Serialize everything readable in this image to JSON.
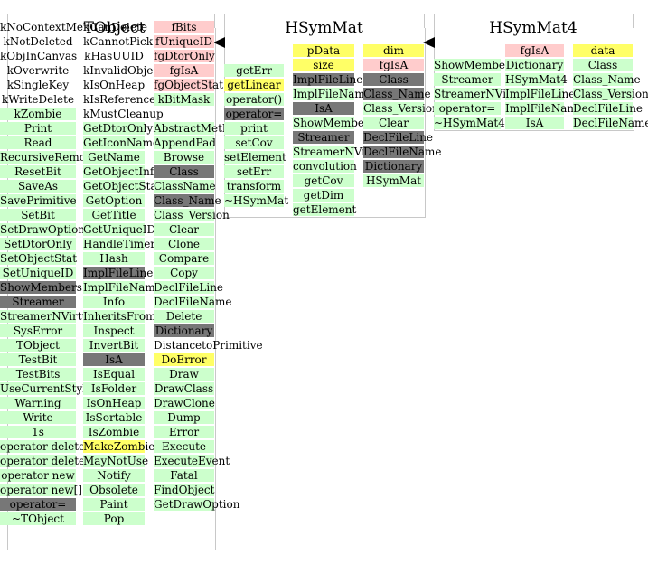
{
  "colors": {
    "method": "#ccffcc",
    "datamember": "#ffcccc",
    "highlight": "#ffff66",
    "inherited": "#777777",
    "frame": "#c8c8c8"
  },
  "panels": [
    {
      "title": "TObject",
      "columns": [
        {
          "x": 0,
          "w": 84,
          "start": 23,
          "cells": [
            {
              "text": "kNoContextMenu",
              "type": "plain"
            },
            {
              "text": "kNotDeleted",
              "type": "plain"
            },
            {
              "text": "kObjInCanvas",
              "type": "plain"
            },
            {
              "text": "kOverwrite",
              "type": "plain"
            },
            {
              "text": "kSingleKey",
              "type": "plain"
            },
            {
              "text": "kWriteDelete",
              "type": "plain"
            },
            {
              "text": "kZombie",
              "type": "method"
            },
            {
              "text": "Print",
              "type": "method"
            },
            {
              "text": "Read",
              "type": "method"
            },
            {
              "text": "RecursiveRemove",
              "type": "method"
            },
            {
              "text": "ResetBit",
              "type": "method"
            },
            {
              "text": "SaveAs",
              "type": "method"
            },
            {
              "text": "SavePrimitive",
              "type": "method"
            },
            {
              "text": "SetBit",
              "type": "method"
            },
            {
              "text": "SetDrawOption",
              "type": "method"
            },
            {
              "text": "SetDtorOnly",
              "type": "method"
            },
            {
              "text": "SetObjectStat",
              "type": "method"
            },
            {
              "text": "SetUniqueID",
              "type": "method"
            },
            {
              "text": "ShowMembers",
              "type": "inherited"
            },
            {
              "text": "Streamer",
              "type": "inherited"
            },
            {
              "text": "StreamerNVirtual",
              "type": "method"
            },
            {
              "text": "SysError",
              "type": "method"
            },
            {
              "text": "TObject",
              "type": "method"
            },
            {
              "text": "TestBit",
              "type": "method"
            },
            {
              "text": "TestBits",
              "type": "method"
            },
            {
              "text": "UseCurrentStyle",
              "type": "method"
            },
            {
              "text": "Warning",
              "type": "method"
            },
            {
              "text": "Write",
              "type": "method"
            },
            {
              "text": "1s",
              "type": "method"
            },
            {
              "text": "operator delete",
              "type": "method"
            },
            {
              "text": "operator delete[]",
              "type": "method"
            },
            {
              "text": "operator new",
              "type": "method"
            },
            {
              "text": "operator new[]",
              "type": "method"
            },
            {
              "text": "operator=",
              "type": "inherited"
            },
            {
              "text": "~TObject",
              "type": "method"
            }
          ]
        },
        {
          "x": 92,
          "w": 68,
          "start": 23,
          "cells": [
            {
              "text": "kCanDelete",
              "type": "plain"
            },
            {
              "text": "kCannotPick",
              "type": "plain"
            },
            {
              "text": "kHasUUID",
              "type": "plain"
            },
            {
              "text": "kInvalidObject",
              "type": "plain"
            },
            {
              "text": "kIsOnHeap",
              "type": "plain"
            },
            {
              "text": "kIsReferenced",
              "type": "plain"
            },
            {
              "text": "kMustCleanup",
              "type": "plain"
            },
            {
              "text": "GetDtorOnly",
              "type": "method"
            },
            {
              "text": "GetIconName",
              "type": "method"
            },
            {
              "text": "GetName",
              "type": "method"
            },
            {
              "text": "GetObjectInfo",
              "type": "method"
            },
            {
              "text": "GetObjectStat",
              "type": "method"
            },
            {
              "text": "GetOption",
              "type": "method"
            },
            {
              "text": "GetTitle",
              "type": "method"
            },
            {
              "text": "GetUniqueID",
              "type": "method"
            },
            {
              "text": "HandleTimer",
              "type": "method"
            },
            {
              "text": "Hash",
              "type": "method"
            },
            {
              "text": "ImplFileLine",
              "type": "inherited"
            },
            {
              "text": "ImplFileName",
              "type": "method"
            },
            {
              "text": "Info",
              "type": "method"
            },
            {
              "text": "InheritsFrom",
              "type": "method"
            },
            {
              "text": "Inspect",
              "type": "method"
            },
            {
              "text": "InvertBit",
              "type": "method"
            },
            {
              "text": "IsA",
              "type": "inherited"
            },
            {
              "text": "IsEqual",
              "type": "method"
            },
            {
              "text": "IsFolder",
              "type": "method"
            },
            {
              "text": "IsOnHeap",
              "type": "method"
            },
            {
              "text": "IsSortable",
              "type": "method"
            },
            {
              "text": "IsZombie",
              "type": "method"
            },
            {
              "text": "MakeZombie",
              "type": "highlight"
            },
            {
              "text": "MayNotUse",
              "type": "method"
            },
            {
              "text": "Notify",
              "type": "method"
            },
            {
              "text": "Obsolete",
              "type": "method"
            },
            {
              "text": "Paint",
              "type": "method"
            },
            {
              "text": "Pop",
              "type": "method"
            }
          ]
        },
        {
          "x": 170,
          "w": 67,
          "start": 23,
          "cells": [
            {
              "text": "fBits",
              "type": "datamember"
            },
            {
              "text": "fUniqueID",
              "type": "datamember"
            },
            {
              "text": "fgDtorOnly",
              "type": "datamember"
            },
            {
              "text": "fgIsA",
              "type": "datamember"
            },
            {
              "text": "fgObjectStat",
              "type": "datamember"
            },
            {
              "text": "kBitMask",
              "type": "method"
            },
            {
              "text": "",
              "type": "empty"
            },
            {
              "text": "AbstractMethod",
              "type": "method"
            },
            {
              "text": "AppendPad",
              "type": "method"
            },
            {
              "text": "Browse",
              "type": "method"
            },
            {
              "text": "Class",
              "type": "inherited"
            },
            {
              "text": "ClassName",
              "type": "method"
            },
            {
              "text": "Class_Name",
              "type": "inherited"
            },
            {
              "text": "Class_Version",
              "type": "method"
            },
            {
              "text": "Clear",
              "type": "method"
            },
            {
              "text": "Clone",
              "type": "method"
            },
            {
              "text": "Compare",
              "type": "method"
            },
            {
              "text": "Copy",
              "type": "method"
            },
            {
              "text": "DeclFileLine",
              "type": "method"
            },
            {
              "text": "DeclFileName",
              "type": "method"
            },
            {
              "text": "Delete",
              "type": "method"
            },
            {
              "text": "Dictionary",
              "type": "inherited"
            },
            {
              "text": "DistancetoPrimitive",
              "type": "plain"
            },
            {
              "text": "DoError",
              "type": "highlight"
            },
            {
              "text": "Draw",
              "type": "method"
            },
            {
              "text": "DrawClass",
              "type": "method"
            },
            {
              "text": "DrawClone",
              "type": "method"
            },
            {
              "text": "Dump",
              "type": "method"
            },
            {
              "text": "Error",
              "type": "method"
            },
            {
              "text": "Execute",
              "type": "method"
            },
            {
              "text": "ExecuteEvent",
              "type": "method"
            },
            {
              "text": "Fatal",
              "type": "method"
            },
            {
              "text": "FindObject",
              "type": "method"
            },
            {
              "text": "GetDrawOption",
              "type": "method"
            },
            {
              "text": "",
              "type": "empty"
            }
          ]
        }
      ]
    },
    {
      "title": "HSymMat",
      "columns": [
        {
          "x": 248,
          "w": 66,
          "start": 55,
          "cells": [
            {
              "text": "",
              "type": "empty"
            },
            {
              "text": "getErr",
              "type": "method"
            },
            {
              "text": "getLinear",
              "type": "highlight"
            },
            {
              "text": "operator()",
              "type": "method"
            },
            {
              "text": "operator=",
              "type": "inherited"
            },
            {
              "text": "print",
              "type": "method"
            },
            {
              "text": "setCov",
              "type": "method"
            },
            {
              "text": "setElement",
              "type": "method"
            },
            {
              "text": "setErr",
              "type": "method"
            },
            {
              "text": "transform",
              "type": "method"
            },
            {
              "text": "~HSymMat",
              "type": "method"
            }
          ]
        },
        {
          "x": 324,
          "w": 68,
          "start": 49,
          "cells": [
            {
              "text": "pData",
              "type": "highlight"
            },
            {
              "text": "size",
              "type": "highlight"
            },
            {
              "text": "ImplFileLine",
              "type": "inherited"
            },
            {
              "text": "ImplFileName",
              "type": "method"
            },
            {
              "text": "IsA",
              "type": "inherited"
            },
            {
              "text": "ShowMembers",
              "type": "method"
            },
            {
              "text": "Streamer",
              "type": "inherited"
            },
            {
              "text": "StreamerNVirtual",
              "type": "method"
            },
            {
              "text": "convolution",
              "type": "method"
            },
            {
              "text": "getCov",
              "type": "method"
            },
            {
              "text": "getDim",
              "type": "method"
            },
            {
              "text": "getElement",
              "type": "method"
            }
          ]
        },
        {
          "x": 402,
          "w": 67,
          "start": 49,
          "cells": [
            {
              "text": "dim",
              "type": "highlight"
            },
            {
              "text": "fgIsA",
              "type": "datamember"
            },
            {
              "text": "Class",
              "type": "inherited"
            },
            {
              "text": "Class_Name",
              "type": "inherited"
            },
            {
              "text": "Class_Version",
              "type": "method"
            },
            {
              "text": "Clear",
              "type": "method"
            },
            {
              "text": "DeclFileLine",
              "type": "inherited"
            },
            {
              "text": "DeclFileName",
              "type": "inherited"
            },
            {
              "text": "Dictionary",
              "type": "inherited"
            },
            {
              "text": "HSymMat",
              "type": "method"
            }
          ]
        }
      ]
    },
    {
      "title": "HSymMat4",
      "columns": [
        {
          "x": 480,
          "w": 74,
          "start": 65,
          "cells": [
            {
              "text": "ShowMembers",
              "type": "method"
            },
            {
              "text": "Streamer",
              "type": "method"
            },
            {
              "text": "StreamerNVirtual",
              "type": "method"
            },
            {
              "text": "operator=",
              "type": "method"
            },
            {
              "text": "~HSymMat4",
              "type": "method"
            }
          ]
        },
        {
          "x": 559,
          "w": 65,
          "start": 49,
          "cells": [
            {
              "text": "fgIsA",
              "type": "datamember"
            },
            {
              "text": "Dictionary",
              "type": "method"
            },
            {
              "text": "HSymMat4",
              "type": "method"
            },
            {
              "text": "ImplFileLine",
              "type": "method"
            },
            {
              "text": "ImplFileName",
              "type": "method"
            },
            {
              "text": "IsA",
              "type": "method"
            }
          ]
        },
        {
          "x": 634,
          "w": 66,
          "start": 49,
          "cells": [
            {
              "text": "data",
              "type": "highlight"
            },
            {
              "text": "Class",
              "type": "method"
            },
            {
              "text": "Class_Name",
              "type": "method"
            },
            {
              "text": "Class_Version",
              "type": "method"
            },
            {
              "text": "DeclFileLine",
              "type": "method"
            },
            {
              "text": "DeclFileName",
              "type": "method"
            }
          ]
        }
      ]
    }
  ]
}
